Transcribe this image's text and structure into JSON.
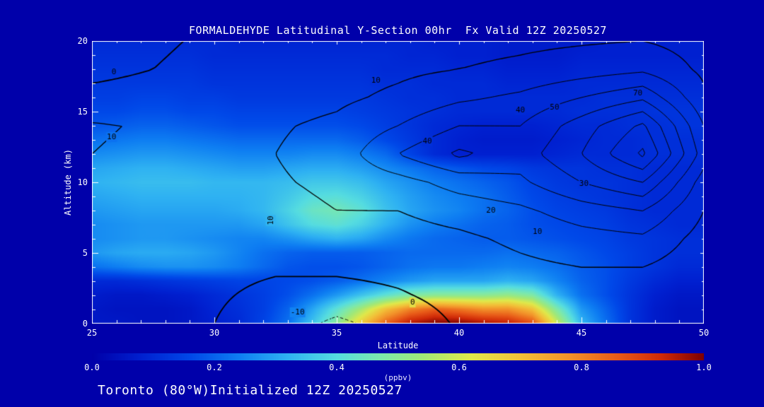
{
  "title": "FORMALDEHYDE Latitudinal Y-Section 00hr  Fx Valid 12Z 20250527",
  "footer": "Toronto (80°W)Initialized 12Z 20250527",
  "colors": {
    "background": "#0000AA",
    "frame": "#FFFFFF",
    "text": "#FFFFFF",
    "contour_line": "#000000"
  },
  "chart_data": {
    "type": "heatmap",
    "title": "FORMALDEHYDE Latitudinal Y-Section 00hr  Fx Valid 12Z 20250527",
    "xlabel": "Latitude",
    "ylabel": "Altitude (km)",
    "xlim": [
      25,
      50
    ],
    "ylim": [
      0,
      20
    ],
    "x_ticks": [
      25,
      30,
      35,
      40,
      45,
      50
    ],
    "y_ticks": [
      0,
      5,
      10,
      15,
      20
    ],
    "colorbar": {
      "min": 0.0,
      "max": 1.0,
      "ticks": [
        "0.0",
        "0.2",
        "0.4",
        "0.6",
        "0.8",
        "1.0"
      ],
      "label": "(ppbv)"
    },
    "colormap": [
      [
        0.0,
        "#0000A8"
      ],
      [
        0.08,
        "#0020D0"
      ],
      [
        0.16,
        "#0048E8"
      ],
      [
        0.24,
        "#0E7EF2"
      ],
      [
        0.32,
        "#2FB2F2"
      ],
      [
        0.4,
        "#55DCE0"
      ],
      [
        0.47,
        "#7BE8AE"
      ],
      [
        0.54,
        "#A0E878"
      ],
      [
        0.62,
        "#E0E84A"
      ],
      [
        0.7,
        "#F2C038"
      ],
      [
        0.78,
        "#F2922A"
      ],
      [
        0.86,
        "#E85A18"
      ],
      [
        0.93,
        "#D02A08"
      ],
      [
        1.0,
        "#7E0000"
      ]
    ],
    "field": {
      "units": "ppbv",
      "lats": [
        25,
        26,
        27,
        28,
        29,
        30,
        31,
        32,
        33,
        34,
        35,
        36,
        37,
        38,
        39,
        40,
        41,
        42,
        43,
        44,
        45,
        46,
        47,
        48,
        49,
        50
      ],
      "alts": [
        0,
        1,
        2,
        3,
        4,
        5,
        6,
        7,
        8,
        9,
        10,
        11,
        12,
        13,
        14,
        15,
        16,
        17,
        18,
        19,
        20
      ],
      "values": [
        [
          0.06,
          0.06,
          0.05,
          0.05,
          0.06,
          0.08,
          0.1,
          0.15,
          0.22,
          0.35,
          0.5,
          0.68,
          0.85,
          0.96,
          1.0,
          1.0,
          0.97,
          0.95,
          0.88,
          0.6,
          0.33,
          0.22,
          0.12,
          0.07,
          0.05,
          0.05
        ],
        [
          0.06,
          0.05,
          0.05,
          0.05,
          0.06,
          0.09,
          0.11,
          0.14,
          0.2,
          0.3,
          0.42,
          0.55,
          0.7,
          0.8,
          0.85,
          0.82,
          0.78,
          0.78,
          0.7,
          0.48,
          0.28,
          0.2,
          0.12,
          0.07,
          0.05,
          0.05
        ],
        [
          0.07,
          0.06,
          0.06,
          0.07,
          0.08,
          0.1,
          0.12,
          0.14,
          0.17,
          0.22,
          0.28,
          0.35,
          0.42,
          0.48,
          0.5,
          0.5,
          0.5,
          0.52,
          0.48,
          0.32,
          0.22,
          0.17,
          0.12,
          0.08,
          0.06,
          0.06
        ],
        [
          0.1,
          0.1,
          0.11,
          0.12,
          0.13,
          0.14,
          0.15,
          0.15,
          0.16,
          0.17,
          0.19,
          0.22,
          0.25,
          0.28,
          0.3,
          0.3,
          0.3,
          0.32,
          0.3,
          0.25,
          0.2,
          0.17,
          0.13,
          0.1,
          0.08,
          0.08
        ],
        [
          0.22,
          0.24,
          0.26,
          0.27,
          0.27,
          0.26,
          0.24,
          0.21,
          0.18,
          0.17,
          0.17,
          0.18,
          0.2,
          0.22,
          0.23,
          0.23,
          0.24,
          0.25,
          0.24,
          0.22,
          0.19,
          0.17,
          0.14,
          0.12,
          0.1,
          0.1
        ],
        [
          0.28,
          0.3,
          0.31,
          0.31,
          0.3,
          0.28,
          0.25,
          0.22,
          0.2,
          0.19,
          0.19,
          0.19,
          0.2,
          0.21,
          0.21,
          0.21,
          0.21,
          0.22,
          0.21,
          0.2,
          0.18,
          0.16,
          0.14,
          0.12,
          0.11,
          0.11
        ],
        [
          0.26,
          0.27,
          0.28,
          0.28,
          0.27,
          0.26,
          0.25,
          0.25,
          0.27,
          0.3,
          0.32,
          0.3,
          0.26,
          0.23,
          0.21,
          0.2,
          0.19,
          0.19,
          0.18,
          0.17,
          0.16,
          0.15,
          0.13,
          0.12,
          0.11,
          0.11
        ],
        [
          0.26,
          0.27,
          0.28,
          0.28,
          0.28,
          0.28,
          0.28,
          0.3,
          0.35,
          0.4,
          0.42,
          0.38,
          0.32,
          0.27,
          0.24,
          0.22,
          0.2,
          0.19,
          0.17,
          0.16,
          0.15,
          0.14,
          0.12,
          0.11,
          0.1,
          0.1
        ],
        [
          0.28,
          0.29,
          0.3,
          0.3,
          0.3,
          0.3,
          0.31,
          0.33,
          0.38,
          0.44,
          0.46,
          0.42,
          0.35,
          0.3,
          0.27,
          0.25,
          0.22,
          0.2,
          0.17,
          0.15,
          0.14,
          0.13,
          0.11,
          0.1,
          0.1,
          0.1
        ],
        [
          0.3,
          0.31,
          0.32,
          0.32,
          0.32,
          0.32,
          0.32,
          0.33,
          0.36,
          0.4,
          0.41,
          0.38,
          0.33,
          0.29,
          0.26,
          0.24,
          0.22,
          0.19,
          0.16,
          0.14,
          0.13,
          0.12,
          0.11,
          0.1,
          0.1,
          0.1
        ],
        [
          0.32,
          0.33,
          0.34,
          0.34,
          0.34,
          0.33,
          0.33,
          0.33,
          0.34,
          0.36,
          0.36,
          0.34,
          0.3,
          0.27,
          0.24,
          0.22,
          0.2,
          0.18,
          0.15,
          0.13,
          0.12,
          0.12,
          0.11,
          0.1,
          0.1,
          0.1
        ],
        [
          0.3,
          0.31,
          0.32,
          0.32,
          0.31,
          0.3,
          0.29,
          0.29,
          0.3,
          0.31,
          0.31,
          0.29,
          0.26,
          0.23,
          0.2,
          0.18,
          0.16,
          0.15,
          0.13,
          0.12,
          0.12,
          0.11,
          0.11,
          0.1,
          0.1,
          0.1
        ],
        [
          0.26,
          0.27,
          0.28,
          0.28,
          0.27,
          0.26,
          0.25,
          0.25,
          0.25,
          0.26,
          0.26,
          0.24,
          0.21,
          0.15,
          0.1,
          0.08,
          0.08,
          0.08,
          0.08,
          0.09,
          0.1,
          0.1,
          0.1,
          0.11,
          0.11,
          0.11
        ],
        [
          0.22,
          0.23,
          0.24,
          0.24,
          0.23,
          0.22,
          0.21,
          0.21,
          0.21,
          0.21,
          0.21,
          0.19,
          0.16,
          0.13,
          0.1,
          0.08,
          0.07,
          0.07,
          0.07,
          0.08,
          0.09,
          0.1,
          0.1,
          0.11,
          0.11,
          0.11
        ],
        [
          0.18,
          0.19,
          0.2,
          0.2,
          0.19,
          0.18,
          0.17,
          0.17,
          0.17,
          0.17,
          0.17,
          0.16,
          0.14,
          0.12,
          0.1,
          0.09,
          0.08,
          0.08,
          0.08,
          0.09,
          0.1,
          0.1,
          0.11,
          0.11,
          0.12,
          0.12
        ],
        [
          0.16,
          0.16,
          0.17,
          0.17,
          0.16,
          0.16,
          0.15,
          0.15,
          0.15,
          0.15,
          0.15,
          0.14,
          0.13,
          0.12,
          0.11,
          0.1,
          0.1,
          0.1,
          0.1,
          0.1,
          0.11,
          0.11,
          0.11,
          0.12,
          0.12,
          0.12
        ],
        [
          0.14,
          0.14,
          0.15,
          0.15,
          0.14,
          0.14,
          0.13,
          0.13,
          0.13,
          0.13,
          0.13,
          0.13,
          0.12,
          0.11,
          0.11,
          0.1,
          0.1,
          0.1,
          0.1,
          0.1,
          0.1,
          0.11,
          0.11,
          0.11,
          0.11,
          0.11
        ],
        [
          0.13,
          0.13,
          0.13,
          0.13,
          0.13,
          0.12,
          0.12,
          0.12,
          0.12,
          0.12,
          0.12,
          0.12,
          0.11,
          0.11,
          0.1,
          0.1,
          0.1,
          0.09,
          0.09,
          0.09,
          0.1,
          0.1,
          0.1,
          0.1,
          0.1,
          0.1
        ],
        [
          0.12,
          0.12,
          0.12,
          0.12,
          0.12,
          0.11,
          0.11,
          0.11,
          0.11,
          0.11,
          0.11,
          0.11,
          0.1,
          0.1,
          0.1,
          0.09,
          0.09,
          0.08,
          0.08,
          0.08,
          0.09,
          0.09,
          0.09,
          0.09,
          0.09,
          0.09
        ],
        [
          0.11,
          0.11,
          0.11,
          0.11,
          0.11,
          0.1,
          0.1,
          0.1,
          0.1,
          0.1,
          0.1,
          0.1,
          0.1,
          0.09,
          0.09,
          0.08,
          0.08,
          0.07,
          0.07,
          0.07,
          0.08,
          0.08,
          0.08,
          0.08,
          0.08,
          0.08
        ],
        [
          0.1,
          0.1,
          0.1,
          0.1,
          0.1,
          0.1,
          0.09,
          0.09,
          0.09,
          0.09,
          0.09,
          0.09,
          0.09,
          0.09,
          0.08,
          0.08,
          0.08,
          0.07,
          0.07,
          0.07,
          0.07,
          0.08,
          0.08,
          0.08,
          0.08,
          0.08
        ]
      ]
    },
    "contours": {
      "lats": [
        25,
        27.5,
        30,
        32.5,
        35,
        37.5,
        40,
        42.5,
        45,
        47.5,
        50
      ],
      "alts": [
        0,
        2,
        4,
        6,
        8,
        10,
        12,
        14,
        16,
        18,
        20
      ],
      "levels": [
        -10,
        0,
        10,
        20,
        30,
        40,
        50,
        60,
        70
      ],
      "values": [
        [
          2,
          1,
          0,
          -5,
          -12,
          -6,
          1,
          3,
          3,
          2,
          1
        ],
        [
          3,
          2,
          1,
          -2,
          -4,
          -1,
          3,
          5,
          6,
          5,
          2
        ],
        [
          4,
          3,
          2,
          1,
          2,
          3,
          5,
          8,
          10,
          10,
          4
        ],
        [
          5,
          4,
          3,
          4,
          6,
          6,
          8,
          12,
          16,
          18,
          6
        ],
        [
          6,
          5,
          5,
          7,
          10,
          10,
          14,
          18,
          25,
          30,
          10
        ],
        [
          8,
          7,
          7,
          9,
          12,
          16,
          24,
          28,
          40,
          50,
          15
        ],
        [
          10,
          8,
          8,
          10,
          14,
          30,
          42,
          35,
          50,
          72,
          25
        ],
        [
          11,
          9,
          8,
          9,
          12,
          20,
          30,
          30,
          45,
          62,
          20
        ],
        [
          2,
          3,
          4,
          6,
          8,
          12,
          18,
          22,
          30,
          38,
          12
        ],
        [
          -2,
          0,
          2,
          4,
          6,
          8,
          10,
          12,
          15,
          18,
          8
        ],
        [
          -3,
          -1,
          1,
          3,
          5,
          6,
          7,
          8,
          9,
          10,
          6
        ]
      ],
      "labels": [
        {
          "text": "0",
          "lat": 25.9,
          "alt": 17.8,
          "rot": 0
        },
        {
          "text": "10",
          "lat": 36.6,
          "alt": 17.2,
          "rot": 0
        },
        {
          "text": "70",
          "lat": 47.3,
          "alt": 16.3,
          "rot": 0
        },
        {
          "text": "50",
          "lat": 43.9,
          "alt": 15.3,
          "rot": 0
        },
        {
          "text": "40",
          "lat": 42.5,
          "alt": 15.1,
          "rot": 0
        },
        {
          "text": "40",
          "lat": 38.7,
          "alt": 12.9,
          "rot": 0
        },
        {
          "text": "30",
          "lat": 45.1,
          "alt": 9.9,
          "rot": 0
        },
        {
          "text": "20",
          "lat": 41.3,
          "alt": 8.0,
          "rot": 0
        },
        {
          "text": "10",
          "lat": 43.2,
          "alt": 6.5,
          "rot": 0
        },
        {
          "text": "10",
          "lat": 32.3,
          "alt": 7.3,
          "rot": 90
        },
        {
          "text": "10",
          "lat": 25.8,
          "alt": 13.2,
          "rot": 0
        },
        {
          "text": "0",
          "lat": 38.1,
          "alt": 1.5,
          "rot": 0
        },
        {
          "text": "-10",
          "lat": 33.4,
          "alt": 0.8,
          "rot": 0
        }
      ]
    }
  }
}
